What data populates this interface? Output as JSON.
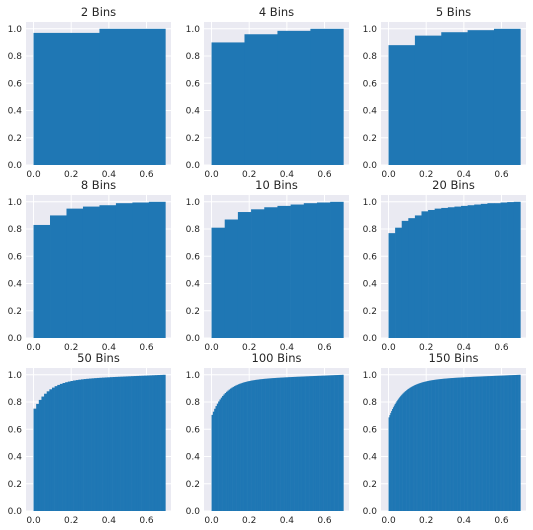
{
  "chart_data": [
    {
      "type": "bar",
      "title": "2 Bins",
      "bins": 2,
      "xlim": [
        -0.04,
        0.73
      ],
      "ylim": [
        0,
        1.05
      ],
      "xticks": [
        0.0,
        0.2,
        0.4,
        0.6
      ],
      "yticks": [
        0.0,
        0.2,
        0.4,
        0.6,
        0.8,
        1.0
      ],
      "xtick_labels": [
        "0.0",
        "0.2",
        "0.4",
        "0.6"
      ],
      "ytick_labels": [
        "0.0",
        "0.2",
        "0.4",
        "0.6",
        "0.8",
        "1.0"
      ],
      "values": [
        0.97,
        1.0
      ]
    },
    {
      "type": "bar",
      "title": "4 Bins",
      "bins": 4,
      "xlim": [
        -0.04,
        0.73
      ],
      "ylim": [
        0,
        1.05
      ],
      "xticks": [
        0.0,
        0.2,
        0.4,
        0.6
      ],
      "yticks": [
        0.0,
        0.2,
        0.4,
        0.6,
        0.8,
        1.0
      ],
      "xtick_labels": [
        "0.0",
        "0.2",
        "0.4",
        "0.6"
      ],
      "ytick_labels": [
        "0.0",
        "0.2",
        "0.4",
        "0.6",
        "0.8",
        "1.0"
      ],
      "values": [
        0.9,
        0.96,
        0.985,
        1.0
      ]
    },
    {
      "type": "bar",
      "title": "5 Bins",
      "bins": 5,
      "xlim": [
        -0.04,
        0.73
      ],
      "ylim": [
        0,
        1.05
      ],
      "xticks": [
        0.0,
        0.2,
        0.4,
        0.6
      ],
      "yticks": [
        0.0,
        0.2,
        0.4,
        0.6,
        0.8,
        1.0
      ],
      "xtick_labels": [
        "0.0",
        "0.2",
        "0.4",
        "0.6"
      ],
      "ytick_labels": [
        "0.0",
        "0.2",
        "0.4",
        "0.6",
        "0.8",
        "1.0"
      ],
      "values": [
        0.88,
        0.95,
        0.975,
        0.99,
        1.0
      ]
    },
    {
      "type": "bar",
      "title": "8 Bins",
      "bins": 8,
      "xlim": [
        -0.04,
        0.73
      ],
      "ylim": [
        0,
        1.05
      ],
      "xticks": [
        0.0,
        0.2,
        0.4,
        0.6
      ],
      "yticks": [
        0.0,
        0.2,
        0.4,
        0.6,
        0.8,
        1.0
      ],
      "xtick_labels": [
        "0.0",
        "0.2",
        "0.4",
        "0.6"
      ],
      "ytick_labels": [
        "0.0",
        "0.2",
        "0.4",
        "0.6",
        "0.8",
        "1.0"
      ],
      "values": [
        0.83,
        0.9,
        0.95,
        0.965,
        0.975,
        0.99,
        0.995,
        1.0
      ]
    },
    {
      "type": "bar",
      "title": "10 Bins",
      "bins": 10,
      "xlim": [
        -0.04,
        0.73
      ],
      "ylim": [
        0,
        1.05
      ],
      "xticks": [
        0.0,
        0.2,
        0.4,
        0.6
      ],
      "yticks": [
        0.0,
        0.2,
        0.4,
        0.6,
        0.8,
        1.0
      ],
      "xtick_labels": [
        "0.0",
        "0.2",
        "0.4",
        "0.6"
      ],
      "ytick_labels": [
        "0.0",
        "0.2",
        "0.4",
        "0.6",
        "0.8",
        "1.0"
      ],
      "values": [
        0.81,
        0.87,
        0.925,
        0.945,
        0.96,
        0.97,
        0.98,
        0.99,
        0.995,
        1.0
      ]
    },
    {
      "type": "bar",
      "title": "20 Bins",
      "bins": 20,
      "xlim": [
        -0.04,
        0.73
      ],
      "ylim": [
        0,
        1.05
      ],
      "xticks": [
        0.0,
        0.2,
        0.4,
        0.6
      ],
      "yticks": [
        0.0,
        0.2,
        0.4,
        0.6,
        0.8,
        1.0
      ],
      "xtick_labels": [
        "0.0",
        "0.2",
        "0.4",
        "0.6"
      ],
      "ytick_labels": [
        "0.0",
        "0.2",
        "0.4",
        "0.6",
        "0.8",
        "1.0"
      ],
      "values": [
        0.77,
        0.81,
        0.86,
        0.88,
        0.9,
        0.93,
        0.94,
        0.95,
        0.955,
        0.96,
        0.965,
        0.97,
        0.975,
        0.98,
        0.985,
        0.99,
        0.99,
        0.995,
        0.998,
        1.0
      ]
    },
    {
      "type": "bar",
      "title": "50 Bins",
      "bins": 50,
      "xlim": [
        -0.04,
        0.73
      ],
      "ylim": [
        0,
        1.05
      ],
      "xticks": [
        0.0,
        0.2,
        0.4,
        0.6
      ],
      "yticks": [
        0.0,
        0.2,
        0.4,
        0.6,
        0.8,
        1.0
      ],
      "xtick_labels": [
        "0.0",
        "0.2",
        "0.4",
        "0.6"
      ],
      "ytick_labels": [
        "0.0",
        "0.2",
        "0.4",
        "0.6",
        "0.8",
        "1.0"
      ],
      "curve": {
        "start": 0.71,
        "k": 0.45,
        "amp": 0.25
      }
    },
    {
      "type": "bar",
      "title": "100 Bins",
      "bins": 100,
      "xlim": [
        -0.04,
        0.73
      ],
      "ylim": [
        0,
        1.05
      ],
      "xticks": [
        0.0,
        0.2,
        0.4,
        0.6
      ],
      "yticks": [
        0.0,
        0.2,
        0.4,
        0.6,
        0.8,
        1.0
      ],
      "xtick_labels": [
        "0.0",
        "0.2",
        "0.4",
        "0.6"
      ],
      "ytick_labels": [
        "0.0",
        "0.2",
        "0.4",
        "0.6",
        "0.8",
        "1.0"
      ],
      "curve": {
        "start": 0.68,
        "k": 0.42,
        "amp": 0.28
      }
    },
    {
      "type": "bar",
      "title": "150 Bins",
      "bins": 150,
      "xlim": [
        -0.04,
        0.73
      ],
      "ylim": [
        0,
        1.05
      ],
      "xticks": [
        0.0,
        0.2,
        0.4,
        0.6
      ],
      "yticks": [
        0.0,
        0.2,
        0.4,
        0.6,
        0.8,
        1.0
      ],
      "xtick_labels": [
        "0.0",
        "0.2",
        "0.4",
        "0.6"
      ],
      "ytick_labels": [
        "0.0",
        "0.2",
        "0.4",
        "0.6",
        "0.8",
        "1.0"
      ],
      "curve": {
        "start": 0.67,
        "k": 0.43,
        "amp": 0.29
      }
    }
  ],
  "colors": {
    "bar": "#1f77b4",
    "panel_background": "#eaeaf2",
    "grid": "#ffffff",
    "text": "#262626"
  }
}
